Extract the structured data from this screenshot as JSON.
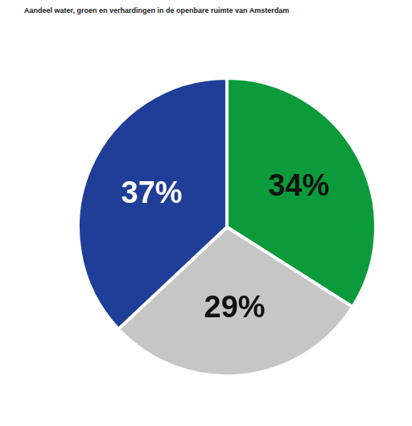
{
  "chart_data": {
    "type": "pie",
    "title": "Aandeel water, groen en verhardingen in de openbare ruimte van Amsterdam",
    "values": [
      34,
      29,
      37
    ],
    "value_labels": [
      "34%",
      "29%",
      "37%"
    ],
    "colors": [
      "#0b9b3b",
      "#c6c6c6",
      "#1f3e97"
    ],
    "data_labels": true
  }
}
